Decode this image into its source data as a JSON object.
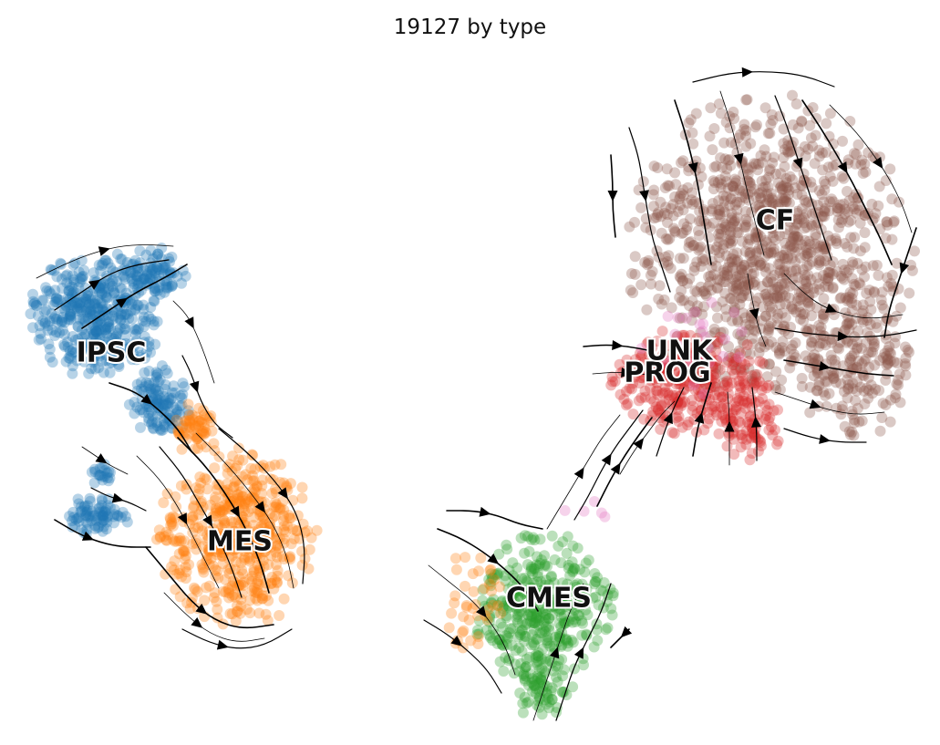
{
  "chart_data": {
    "type": "scatter",
    "title": "19127 by type",
    "xlabel": "",
    "ylabel": "",
    "axes_visible": false,
    "legend": "on data",
    "grid": false,
    "overlay": "velocity streamlines",
    "series": [
      {
        "name": "IPSC",
        "color": "#1f77b4"
      },
      {
        "name": "MES",
        "color": "#ff7f0e"
      },
      {
        "name": "CMES",
        "color": "#2ca02c"
      },
      {
        "name": "PROG",
        "color": "#d62728"
      },
      {
        "name": "CF",
        "color": "#8c564b"
      },
      {
        "name": "UNK",
        "color": "#e377c2"
      }
    ]
  }
}
